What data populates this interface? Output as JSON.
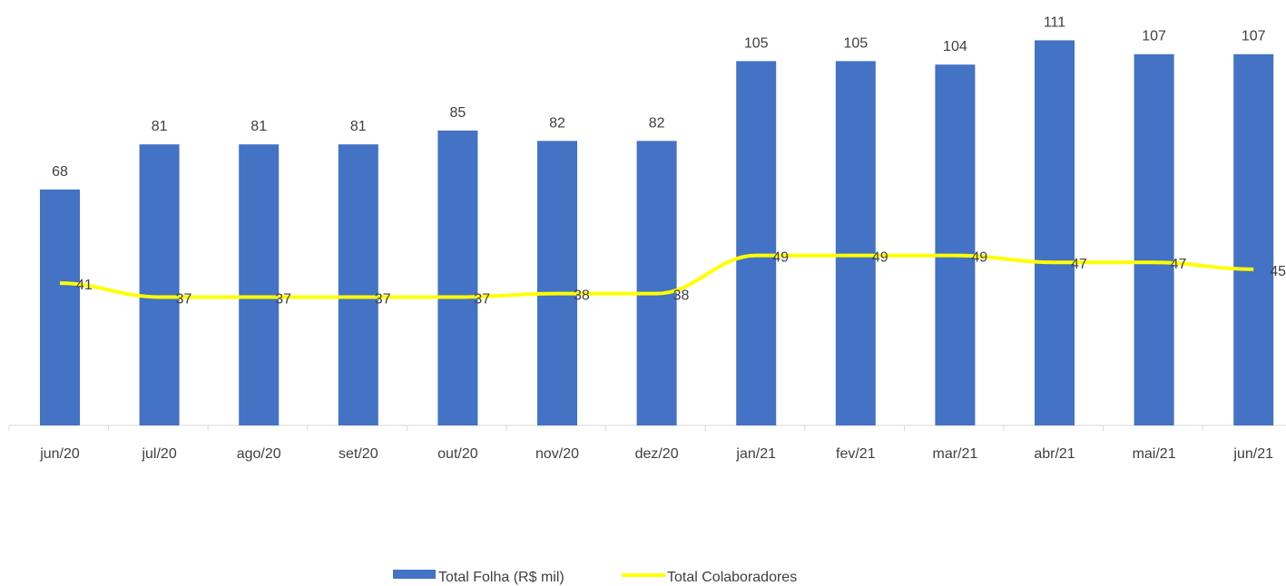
{
  "chart_data": {
    "type": "bar",
    "categories": [
      "jun/20",
      "jul/20",
      "ago/20",
      "set/20",
      "out/20",
      "nov/20",
      "dez/20",
      "jan/21",
      "fev/21",
      "mar/21",
      "abr/21",
      "mai/21",
      "jun/21"
    ],
    "series": [
      {
        "name": "Total Folha (R$ mil)",
        "type": "bar",
        "values": [
          68,
          81,
          81,
          81,
          85,
          82,
          82,
          105,
          105,
          104,
          111,
          107,
          107
        ],
        "color": "#4472C4"
      },
      {
        "name": "Total Colaboradores",
        "type": "line",
        "values": [
          41,
          37,
          37,
          37,
          37,
          38,
          38,
          49,
          49,
          49,
          47,
          47,
          45
        ],
        "color": "#FFFF00"
      }
    ],
    "legend": "bottom-center",
    "grid": false
  }
}
